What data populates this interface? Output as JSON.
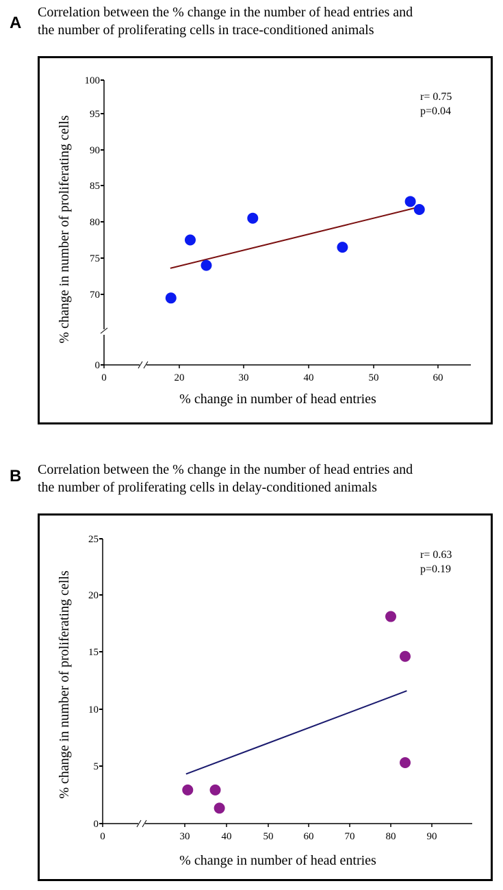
{
  "chart_data": [
    {
      "panel": "A",
      "type": "scatter",
      "title_lines": [
        "Correlation between the % change in the number of head entries and",
        "the number of proliferating cells in trace-conditioned animals"
      ],
      "xlabel": "% change in number of head entries",
      "ylabel": "% change in number of proliferating cells",
      "x_ticks": [
        0,
        20,
        30,
        40,
        50,
        60
      ],
      "y_ticks": [
        0,
        70,
        75,
        80,
        85,
        90,
        95,
        100
      ],
      "xlim": [
        0,
        65
      ],
      "ylim": [
        0,
        100
      ],
      "axis_break": true,
      "points": [
        {
          "x": 18.7,
          "y": 69.5
        },
        {
          "x": 21.7,
          "y": 77.5
        },
        {
          "x": 24.2,
          "y": 74.0
        },
        {
          "x": 31.4,
          "y": 80.5
        },
        {
          "x": 45.2,
          "y": 76.5
        },
        {
          "x": 55.7,
          "y": 82.8
        },
        {
          "x": 57.1,
          "y": 81.7
        }
      ],
      "trendline": {
        "x": [
          18.6,
          56.4
        ],
        "y": [
          73.6,
          81.9
        ],
        "color": "#7b1010"
      },
      "point_color": "#0b1bf0",
      "stats": [
        "r= 0.75",
        "p=0.04"
      ],
      "grid": false
    },
    {
      "panel": "B",
      "type": "scatter",
      "title_lines": [
        "Correlation between the % change in the number of head entries and",
        "the number of proliferating cells in delay-conditioned animals"
      ],
      "xlabel": "% change in number of head entries",
      "ylabel": "% change in number of proliferating cells",
      "x_ticks": [
        0,
        30,
        40,
        50,
        60,
        70,
        80,
        90
      ],
      "y_ticks": [
        0,
        5,
        10,
        15,
        20,
        25
      ],
      "xlim": [
        0,
        100
      ],
      "ylim": [
        0,
        25
      ],
      "axis_break": true,
      "points": [
        {
          "x": 30.7,
          "y": 2.9
        },
        {
          "x": 37.3,
          "y": 2.9
        },
        {
          "x": 38.3,
          "y": 1.3
        },
        {
          "x": 80.0,
          "y": 18.1
        },
        {
          "x": 83.5,
          "y": 14.6
        },
        {
          "x": 83.5,
          "y": 5.3
        }
      ],
      "trendline": {
        "x": [
          30.3,
          83.9
        ],
        "y": [
          4.3,
          11.6
        ],
        "color": "#1a1a6e"
      },
      "point_color": "#8b1b8b",
      "stats": [
        "r= 0.63",
        "p=0.19"
      ],
      "grid": false
    }
  ]
}
